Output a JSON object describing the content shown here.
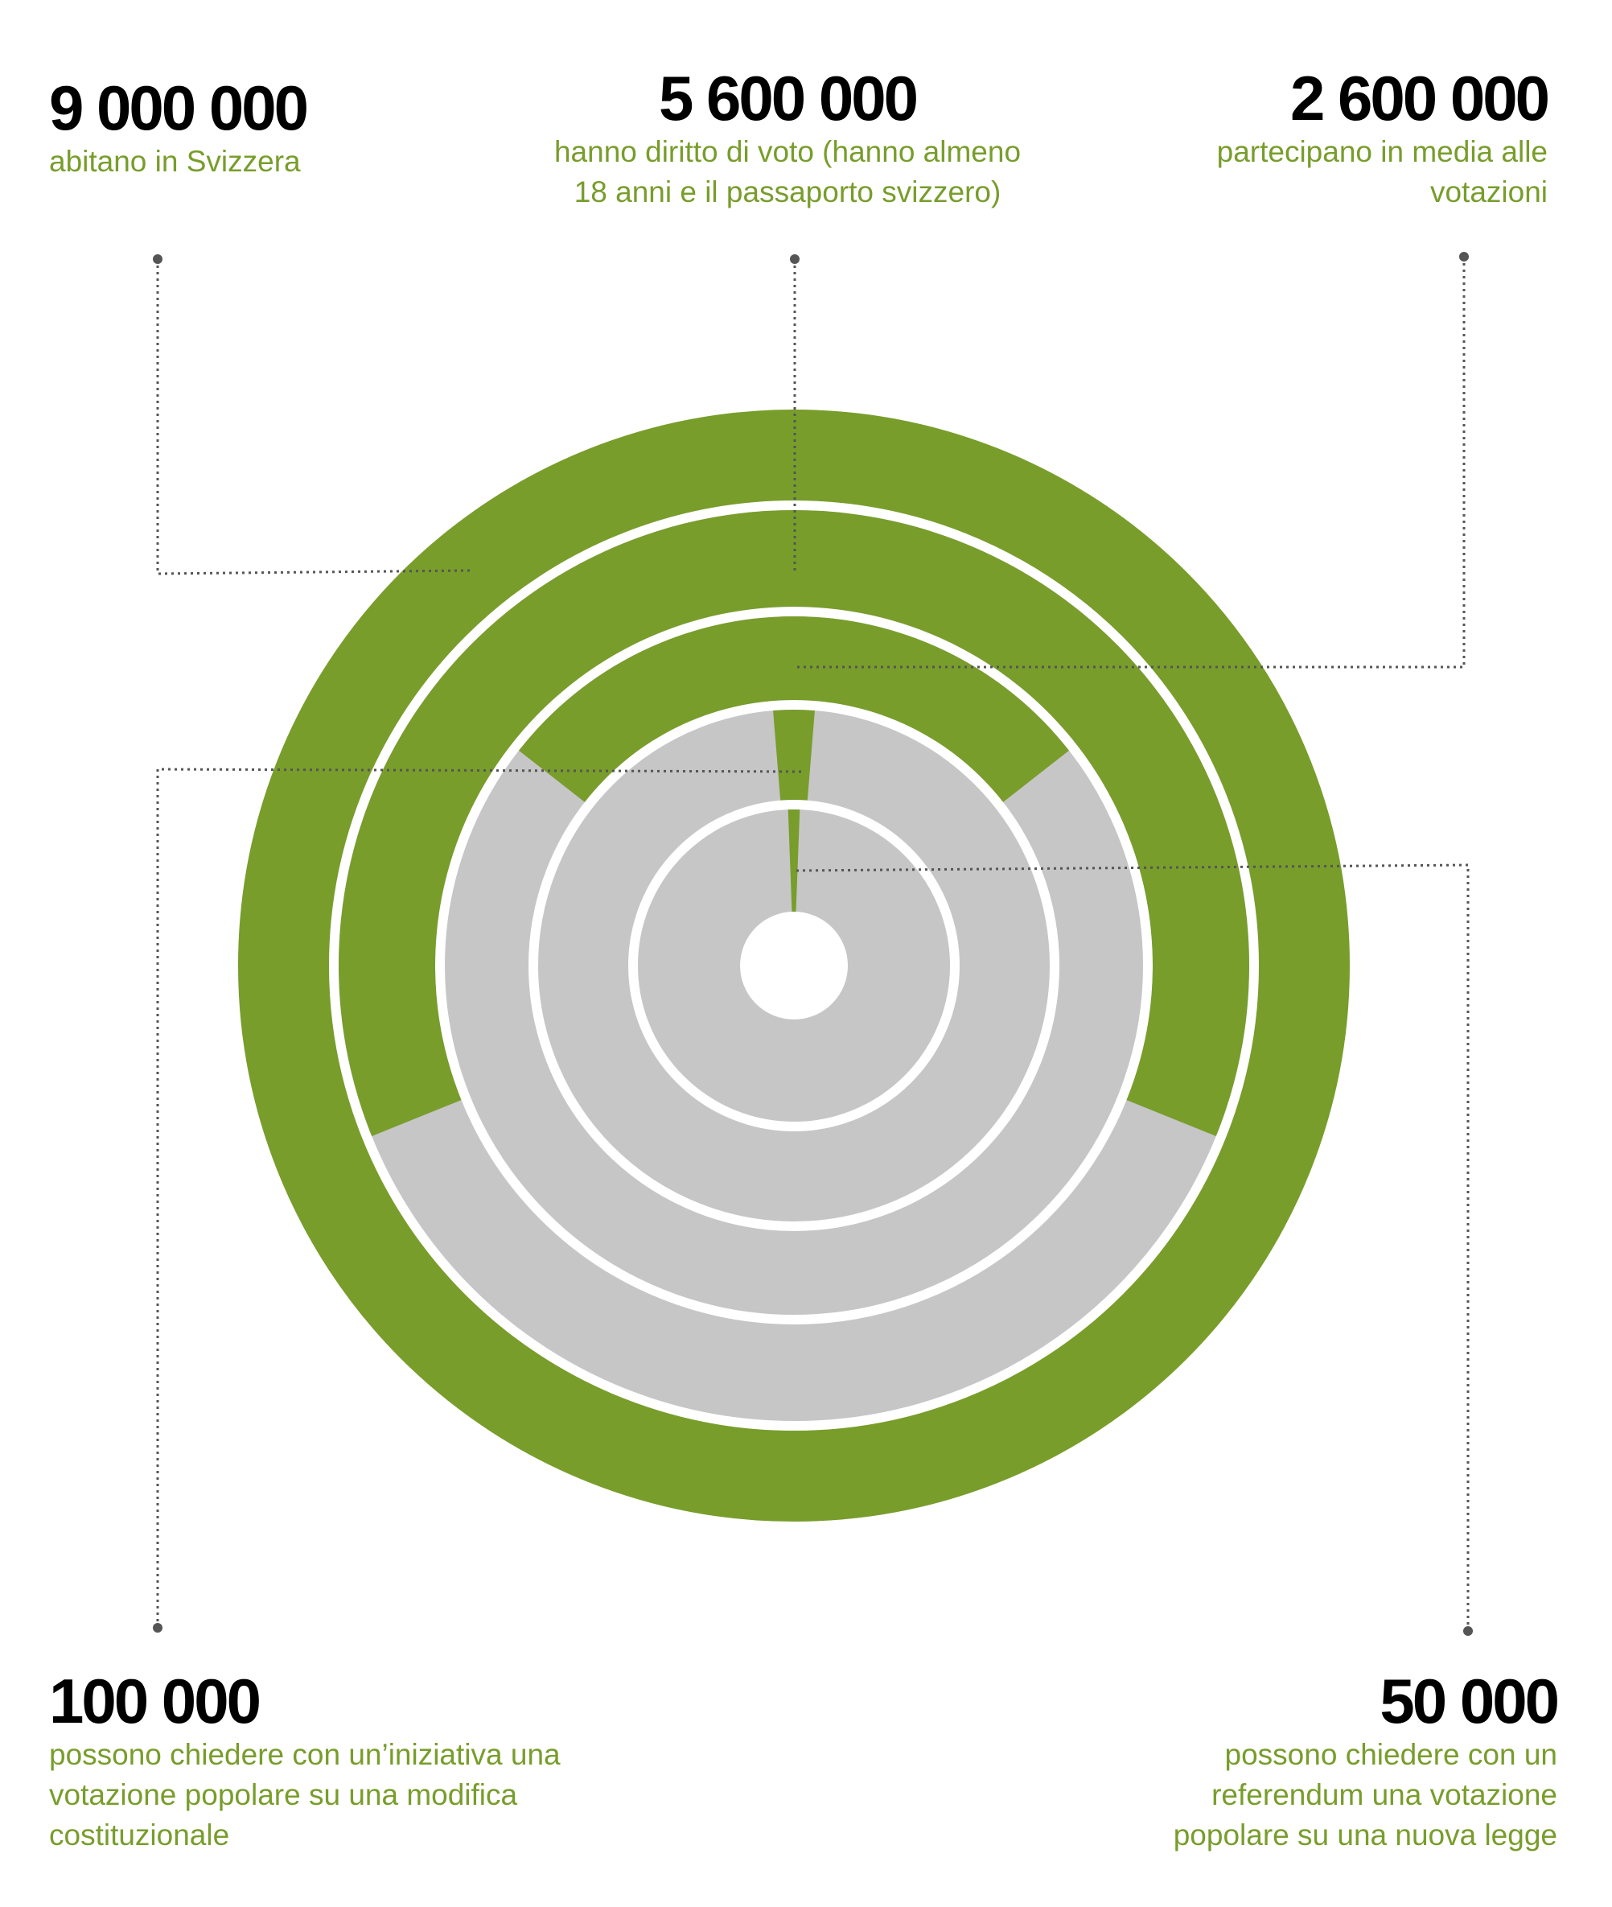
{
  "chart_data": {
    "type": "pie",
    "layout": "concentric rings, each ring partially filled from the top",
    "rings": [
      {
        "value": 9000000,
        "number_label": "9 000 000",
        "description": "abitano in Svizzera"
      },
      {
        "value": 5600000,
        "number_label": "5 600 000",
        "description": "hanno diritto di voto (hanno almeno 18 anni e il passaporto svizzero)"
      },
      {
        "value": 2600000,
        "number_label": "2 600 000",
        "description": "partecipano in media alle votazioni"
      },
      {
        "value": 100000,
        "number_label": "100 000",
        "description": "possono chiedere con un’iniziativa una votazione popolare su una modifica costituzionale"
      },
      {
        "value": 50000,
        "number_label": "50 000",
        "description": "possono chiedere con un referendum una votazione popolare su una nuova legge"
      }
    ],
    "total": 9000000,
    "colors": {
      "filled": "#789d2b",
      "remainder": "#c6c6c6",
      "leader_line": "#555555"
    }
  }
}
